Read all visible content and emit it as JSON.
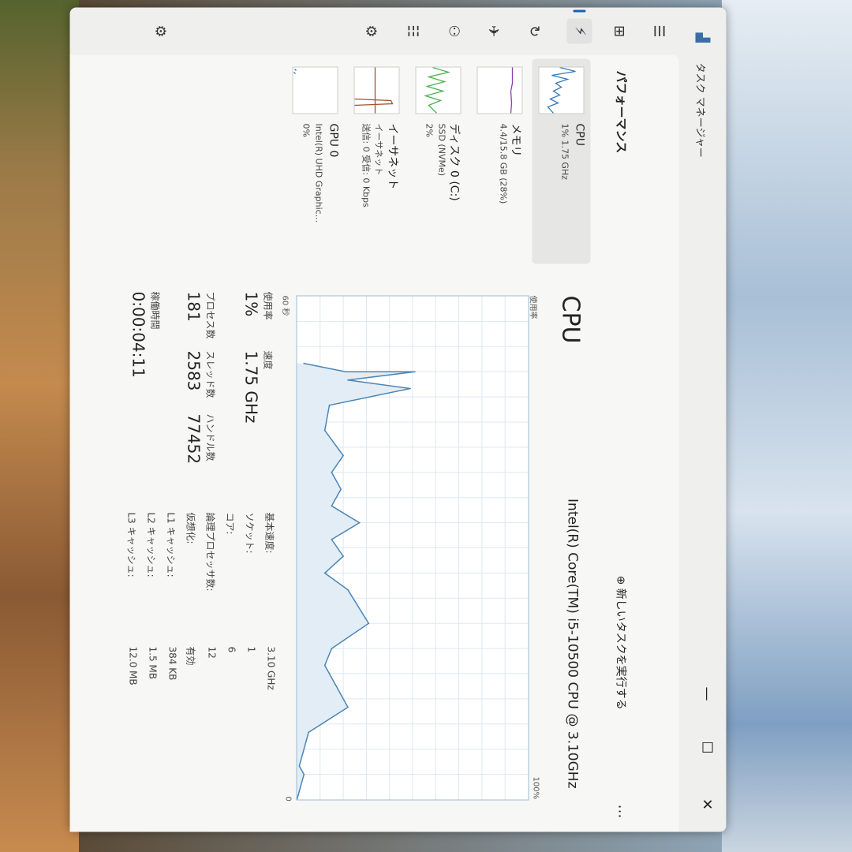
{
  "window": {
    "title": "タスク マネージャー",
    "minimize": "—",
    "maximize": "☐",
    "close": "✕"
  },
  "nav": [
    {
      "name": "hamburger",
      "glyph": "☰"
    },
    {
      "name": "processes",
      "glyph": "⊞"
    },
    {
      "name": "performance",
      "glyph": "⚡",
      "selected": true
    },
    {
      "name": "app-history",
      "glyph": "↻"
    },
    {
      "name": "startup",
      "glyph": "✈"
    },
    {
      "name": "users",
      "glyph": "⚇"
    },
    {
      "name": "details",
      "glyph": "☷"
    },
    {
      "name": "services",
      "glyph": "⚙"
    },
    {
      "name": "settings",
      "glyph": "⚙"
    }
  ],
  "header": {
    "title": "パフォーマンス",
    "new_task": "新しいタスクを実行する",
    "more": "…"
  },
  "resources": [
    {
      "name": "CPU",
      "sub": "1% 1.75 GHz",
      "sub2": "",
      "color": "#3a78b5"
    },
    {
      "name": "メモリ",
      "sub": "4.4/15.8 GB (28%)",
      "sub2": "",
      "color": "#8e3fa8"
    },
    {
      "name": "ディスク 0 (C:)",
      "sub": "SSD (NVMe)",
      "sub2": "2%",
      "color": "#4caf50"
    },
    {
      "name": "イーサネット",
      "sub": "イーサネット",
      "sub2": "送信: 0 受信: 0 Kbps",
      "color": "#a0522d"
    },
    {
      "name": "GPU 0",
      "sub": "Intel(R) UHD Graphic...",
      "sub2": "0%",
      "color": "#3a78b5"
    }
  ],
  "cpu": {
    "title": "CPU",
    "model": "Intel(R) Core(TM) i5-10500 CPU @ 3.10GHz",
    "graph_label": "使用率",
    "graph_max": "100%",
    "graph_time": "60 秒",
    "graph_min": "0",
    "stats": {
      "usage_label": "使用率",
      "usage": "1%",
      "speed_label": "速度",
      "speed": "1.75 GHz",
      "proc_label": "プロセス数",
      "proc": "181",
      "threads_label": "スレッド数",
      "threads": "2583",
      "handles_label": "ハンドル数",
      "handles": "77452",
      "uptime_label": "稼働時間",
      "uptime": "0:00:04:11"
    },
    "info": [
      [
        "基本速度:",
        "3.10 GHz"
      ],
      [
        "ソケット:",
        "1"
      ],
      [
        "コア:",
        "6"
      ],
      [
        "論理プロセッサ数:",
        "12"
      ],
      [
        "仮想化:",
        "有効"
      ],
      [
        "L1 キャッシュ:",
        "384 KB"
      ],
      [
        "L2 キャッシュ:",
        "1.5 MB"
      ],
      [
        "L3 キャッシュ:",
        "12.0 MB"
      ]
    ]
  },
  "chart_data": {
    "type": "area",
    "xlabel": "60 秒",
    "ylabel": "使用率",
    "xlim": [
      60,
      0
    ],
    "ylim": [
      0,
      100
    ],
    "color": "#4a86b8",
    "x_seconds_ago": [
      52,
      51,
      51,
      50,
      49,
      47,
      44,
      41,
      39,
      37,
      35,
      33,
      31,
      29,
      27,
      25,
      21,
      18,
      16,
      11,
      8,
      6,
      4,
      3,
      0
    ],
    "values": [
      3,
      21,
      51,
      22,
      49,
      14,
      12,
      20,
      15,
      19,
      15,
      27,
      15,
      20,
      12,
      22,
      31,
      15,
      12,
      22,
      5,
      3,
      1,
      3,
      0
    ]
  }
}
